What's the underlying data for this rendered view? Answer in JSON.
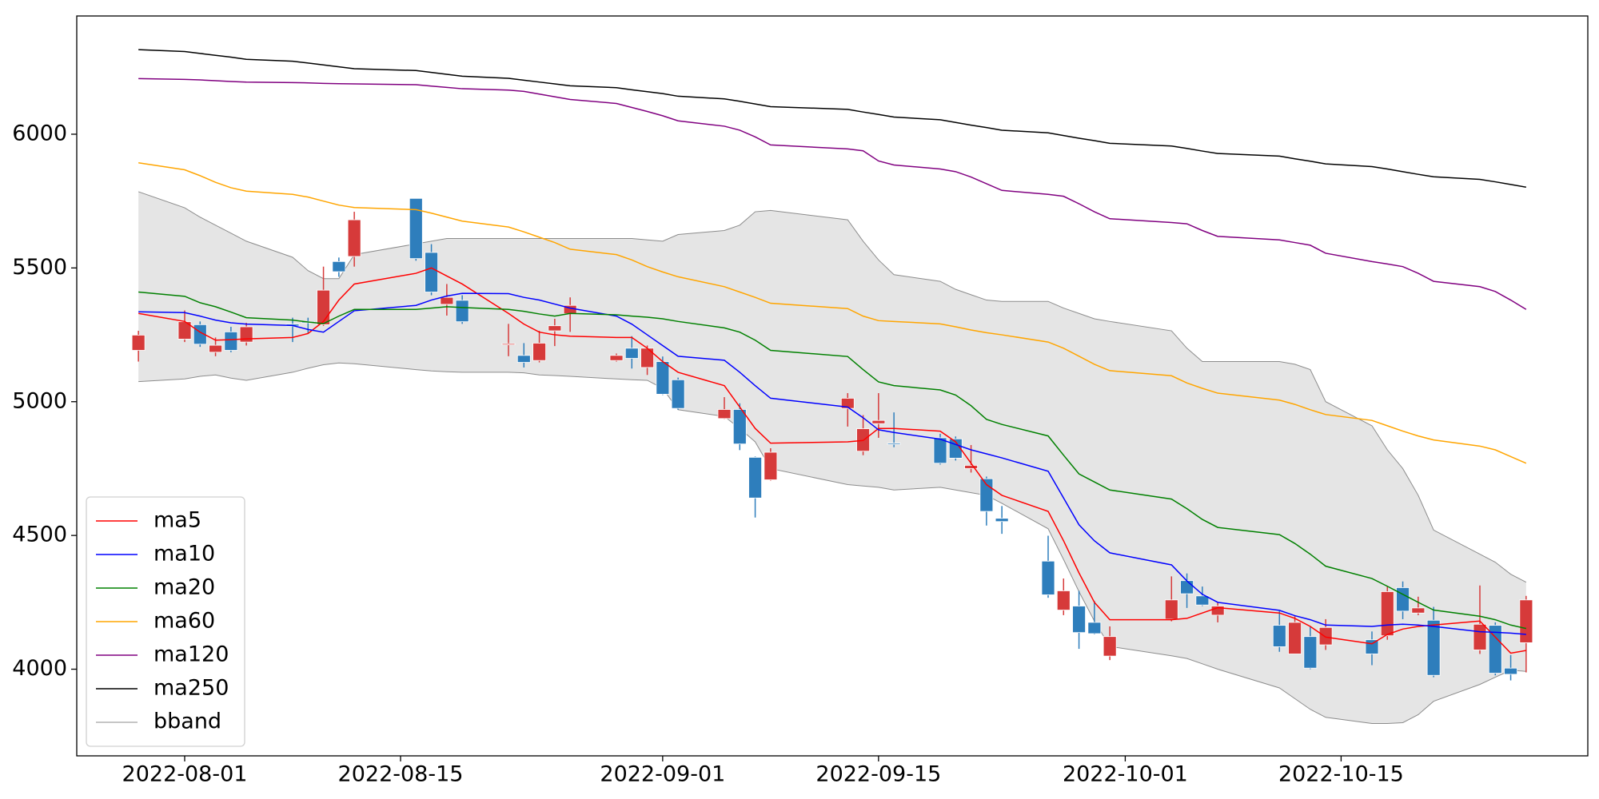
{
  "chart_data": {
    "type": "candlestick",
    "x": [
      "2022-07-29",
      "2022-08-01",
      "2022-08-02",
      "2022-08-03",
      "2022-08-04",
      "2022-08-05",
      "2022-08-08",
      "2022-08-09",
      "2022-08-10",
      "2022-08-11",
      "2022-08-12",
      "2022-08-16",
      "2022-08-17",
      "2022-08-18",
      "2022-08-19",
      "2022-08-22",
      "2022-08-23",
      "2022-08-24",
      "2022-08-25",
      "2022-08-26",
      "2022-08-29",
      "2022-08-30",
      "2022-08-31",
      "2022-09-01",
      "2022-09-02",
      "2022-09-05",
      "2022-09-06",
      "2022-09-07",
      "2022-09-08",
      "2022-09-13",
      "2022-09-14",
      "2022-09-15",
      "2022-09-16",
      "2022-09-19",
      "2022-09-20",
      "2022-09-21",
      "2022-09-22",
      "2022-09-23",
      "2022-09-26",
      "2022-09-27",
      "2022-09-28",
      "2022-09-29",
      "2022-09-30",
      "2022-10-04",
      "2022-10-05",
      "2022-10-06",
      "2022-10-07",
      "2022-10-11",
      "2022-10-12",
      "2022-10-13",
      "2022-10-14",
      "2022-10-17",
      "2022-10-18",
      "2022-10-19",
      "2022-10-20",
      "2022-10-21",
      "2022-10-24",
      "2022-10-25",
      "2022-10-26",
      "2022-10-27"
    ],
    "open": [
      5192,
      5234,
      5288,
      5185,
      5261,
      5223,
      5290,
      5300,
      5288,
      5524,
      5543,
      5760,
      5558,
      5364,
      5379,
      5213,
      5173,
      5154,
      5265,
      5329,
      5154,
      5200,
      5128,
      5150,
      5082,
      4937,
      4971,
      4792,
      4708,
      4975,
      4815,
      4918,
      4845,
      4865,
      4861,
      4750,
      4712,
      4564,
      4404,
      4221,
      4236,
      4175,
      4049,
      4187,
      4331,
      4274,
      4202,
      4164,
      4057,
      4122,
      4091,
      4110,
      4125,
      4305,
      4210,
      4183,
      4072,
      4164,
      4004,
      4099
    ],
    "high": [
      5265,
      5341,
      5300,
      5240,
      5280,
      5295,
      5314,
      5314,
      5505,
      5539,
      5710,
      5760,
      5589,
      5440,
      5398,
      5291,
      5219,
      5265,
      5310,
      5390,
      5180,
      5245,
      5210,
      5169,
      5090,
      5017,
      4994,
      4795,
      4826,
      5032,
      4950,
      5032,
      4960,
      4880,
      4870,
      4838,
      4720,
      4610,
      4499,
      4339,
      4293,
      4255,
      4160,
      4347,
      4358,
      4309,
      4248,
      4217,
      4198,
      4160,
      4187,
      4141,
      4309,
      4328,
      4271,
      4233,
      4313,
      4175,
      4053,
      4274
    ],
    "low": [
      5150,
      5223,
      5205,
      5170,
      5185,
      5210,
      5223,
      5257,
      5283,
      5467,
      5505,
      5527,
      5398,
      5322,
      5291,
      5170,
      5128,
      5147,
      5208,
      5261,
      5150,
      5124,
      5100,
      5025,
      4970,
      4935,
      4819,
      4567,
      4705,
      4907,
      4800,
      4865,
      4830,
      4765,
      4780,
      4735,
      4537,
      4506,
      4267,
      4202,
      4076,
      4130,
      4034,
      4179,
      4229,
      4236,
      4175,
      4065,
      4057,
      4000,
      4072,
      4015,
      4110,
      4187,
      4202,
      3970,
      4057,
      3977,
      3958,
      3988
    ],
    "close": [
      5249,
      5299,
      5215,
      5211,
      5192,
      5280,
      5283,
      5295,
      5417,
      5486,
      5680,
      5535,
      5410,
      5390,
      5299,
      5217,
      5147,
      5219,
      5284,
      5360,
      5173,
      5162,
      5200,
      5028,
      4975,
      4971,
      4842,
      4640,
      4811,
      5013,
      4899,
      4930,
      4842,
      4770,
      4789,
      4762,
      4590,
      4552,
      4278,
      4293,
      4137,
      4133,
      4122,
      4259,
      4282,
      4240,
      4236,
      4084,
      4175,
      4004,
      4156,
      4057,
      4290,
      4217,
      4229,
      3977,
      4168,
      3985,
      3981,
      4259
    ],
    "up_color": "#d63a3a",
    "down_color": "#2e7ebc",
    "series": [
      {
        "name": "ma5",
        "color": "#ff0000",
        "values": [
          5330,
          5300,
          5260,
          5230,
          5232,
          5235,
          5240,
          5255,
          5300,
          5380,
          5440,
          5480,
          5500,
          5470,
          5440,
          5330,
          5290,
          5260,
          5250,
          5245,
          5240,
          5240,
          5200,
          5150,
          5110,
          5060,
          4980,
          4900,
          4845,
          4850,
          4855,
          4900,
          4900,
          4890,
          4850,
          4770,
          4690,
          4650,
          4590,
          4480,
          4360,
          4250,
          4185,
          4185,
          4190,
          4210,
          4230,
          4210,
          4190,
          4160,
          4120,
          4095,
          4130,
          4150,
          4160,
          4165,
          4180,
          4120,
          4060,
          4070
        ]
      },
      {
        "name": "ma10",
        "color": "#0000ff",
        "values": [
          5336,
          5333,
          5320,
          5305,
          5295,
          5290,
          5285,
          5270,
          5260,
          5300,
          5340,
          5360,
          5380,
          5395,
          5405,
          5404,
          5390,
          5380,
          5365,
          5350,
          5320,
          5290,
          5250,
          5210,
          5170,
          5155,
          5110,
          5060,
          5013,
          4980,
          4940,
          4895,
          4885,
          4860,
          4840,
          4820,
          4805,
          4790,
          4740,
          4640,
          4540,
          4480,
          4435,
          4390,
          4330,
          4280,
          4250,
          4220,
          4200,
          4185,
          4165,
          4160,
          4165,
          4168,
          4165,
          4160,
          4140,
          4138,
          4135,
          4130
        ]
      },
      {
        "name": "ma20",
        "color": "#008000",
        "values": [
          5410,
          5394,
          5370,
          5355,
          5335,
          5314,
          5305,
          5298,
          5292,
          5320,
          5345,
          5345,
          5350,
          5355,
          5352,
          5345,
          5338,
          5328,
          5320,
          5330,
          5325,
          5320,
          5316,
          5310,
          5300,
          5276,
          5260,
          5230,
          5192,
          5169,
          5120,
          5074,
          5060,
          5044,
          5025,
          4985,
          4934,
          4915,
          4872,
          4800,
          4730,
          4700,
          4670,
          4636,
          4600,
          4560,
          4530,
          4503,
          4470,
          4430,
          4385,
          4339,
          4310,
          4280,
          4250,
          4221,
          4198,
          4185,
          4165,
          4152
        ]
      },
      {
        "name": "ma60",
        "color": "#ffa500",
        "values": [
          5893,
          5867,
          5845,
          5820,
          5800,
          5787,
          5775,
          5765,
          5750,
          5735,
          5726,
          5718,
          5705,
          5690,
          5675,
          5653,
          5635,
          5615,
          5595,
          5570,
          5550,
          5530,
          5505,
          5485,
          5467,
          5430,
          5410,
          5390,
          5368,
          5348,
          5320,
          5303,
          5300,
          5291,
          5280,
          5268,
          5258,
          5250,
          5223,
          5200,
          5170,
          5140,
          5116,
          5097,
          5070,
          5050,
          5032,
          5006,
          4990,
          4970,
          4952,
          4930,
          4910,
          4890,
          4872,
          4857,
          4834,
          4820,
          4795,
          4770
        ]
      },
      {
        "name": "ma120",
        "color": "#800080",
        "values": [
          6208,
          6205,
          6203,
          6200,
          6197,
          6195,
          6193,
          6192,
          6190,
          6189,
          6188,
          6185,
          6180,
          6175,
          6170,
          6165,
          6160,
          6150,
          6140,
          6130,
          6115,
          6100,
          6085,
          6069,
          6050,
          6030,
          6015,
          5990,
          5960,
          5945,
          5938,
          5900,
          5885,
          5870,
          5860,
          5840,
          5815,
          5790,
          5775,
          5768,
          5740,
          5710,
          5684,
          5670,
          5665,
          5640,
          5618,
          5605,
          5595,
          5585,
          5555,
          5524,
          5515,
          5505,
          5480,
          5450,
          5430,
          5412,
          5380,
          5345
        ]
      },
      {
        "name": "ma250",
        "color": "#000000",
        "values": [
          6316,
          6309,
          6302,
          6295,
          6288,
          6280,
          6273,
          6266,
          6259,
          6252,
          6245,
          6238,
          6231,
          6224,
          6217,
          6209,
          6202,
          6195,
          6188,
          6181,
          6174,
          6166,
          6159,
          6152,
          6142,
          6132,
          6123,
          6113,
          6103,
          6093,
          6083,
          6074,
          6064,
          6054,
          6044,
          6034,
          6025,
          6015,
          6005,
          5995,
          5985,
          5976,
          5966,
          5956,
          5947,
          5937,
          5928,
          5918,
          5908,
          5899,
          5889,
          5879,
          5870,
          5860,
          5850,
          5841,
          5831,
          5822,
          5812,
          5802
        ]
      }
    ],
    "band": {
      "name": "bband",
      "color": "#8c8c8c",
      "fill": "#e5e5e5",
      "upper": [
        5785,
        5725,
        5690,
        5660,
        5630,
        5600,
        5540,
        5490,
        5460,
        5460,
        5550,
        5590,
        5600,
        5610,
        5610,
        5610,
        5610,
        5610,
        5610,
        5610,
        5610,
        5610,
        5605,
        5600,
        5625,
        5640,
        5660,
        5710,
        5715,
        5680,
        5600,
        5530,
        5475,
        5450,
        5420,
        5400,
        5380,
        5375,
        5375,
        5350,
        5330,
        5310,
        5300,
        5265,
        5200,
        5150,
        5150,
        5150,
        5140,
        5120,
        5000,
        4910,
        4820,
        4750,
        4650,
        4520,
        4430,
        4400,
        4355,
        4325
      ],
      "lower": [
        5075,
        5085,
        5095,
        5100,
        5088,
        5080,
        5110,
        5125,
        5138,
        5145,
        5142,
        5120,
        5115,
        5112,
        5110,
        5110,
        5108,
        5100,
        5098,
        5095,
        5085,
        5082,
        5080,
        5050,
        4970,
        4945,
        4900,
        4850,
        4750,
        4690,
        4685,
        4680,
        4670,
        4680,
        4670,
        4660,
        4650,
        4620,
        4525,
        4410,
        4290,
        4180,
        4085,
        4050,
        4040,
        4020,
        4000,
        3930,
        3890,
        3850,
        3820,
        3797,
        3797,
        3800,
        3830,
        3880,
        3943,
        3970,
        3996,
        3992
      ]
    },
    "xlim": [
      "2022-07-25",
      "2022-10-31"
    ],
    "xticks": [
      "2022-08-01",
      "2022-08-15",
      "2022-09-01",
      "2022-09-15",
      "2022-10-01",
      "2022-10-15"
    ],
    "ylim": [
      3676,
      6442
    ],
    "yticks": [
      4000,
      4500,
      5000,
      5500,
      6000
    ],
    "legend": "lower left"
  }
}
